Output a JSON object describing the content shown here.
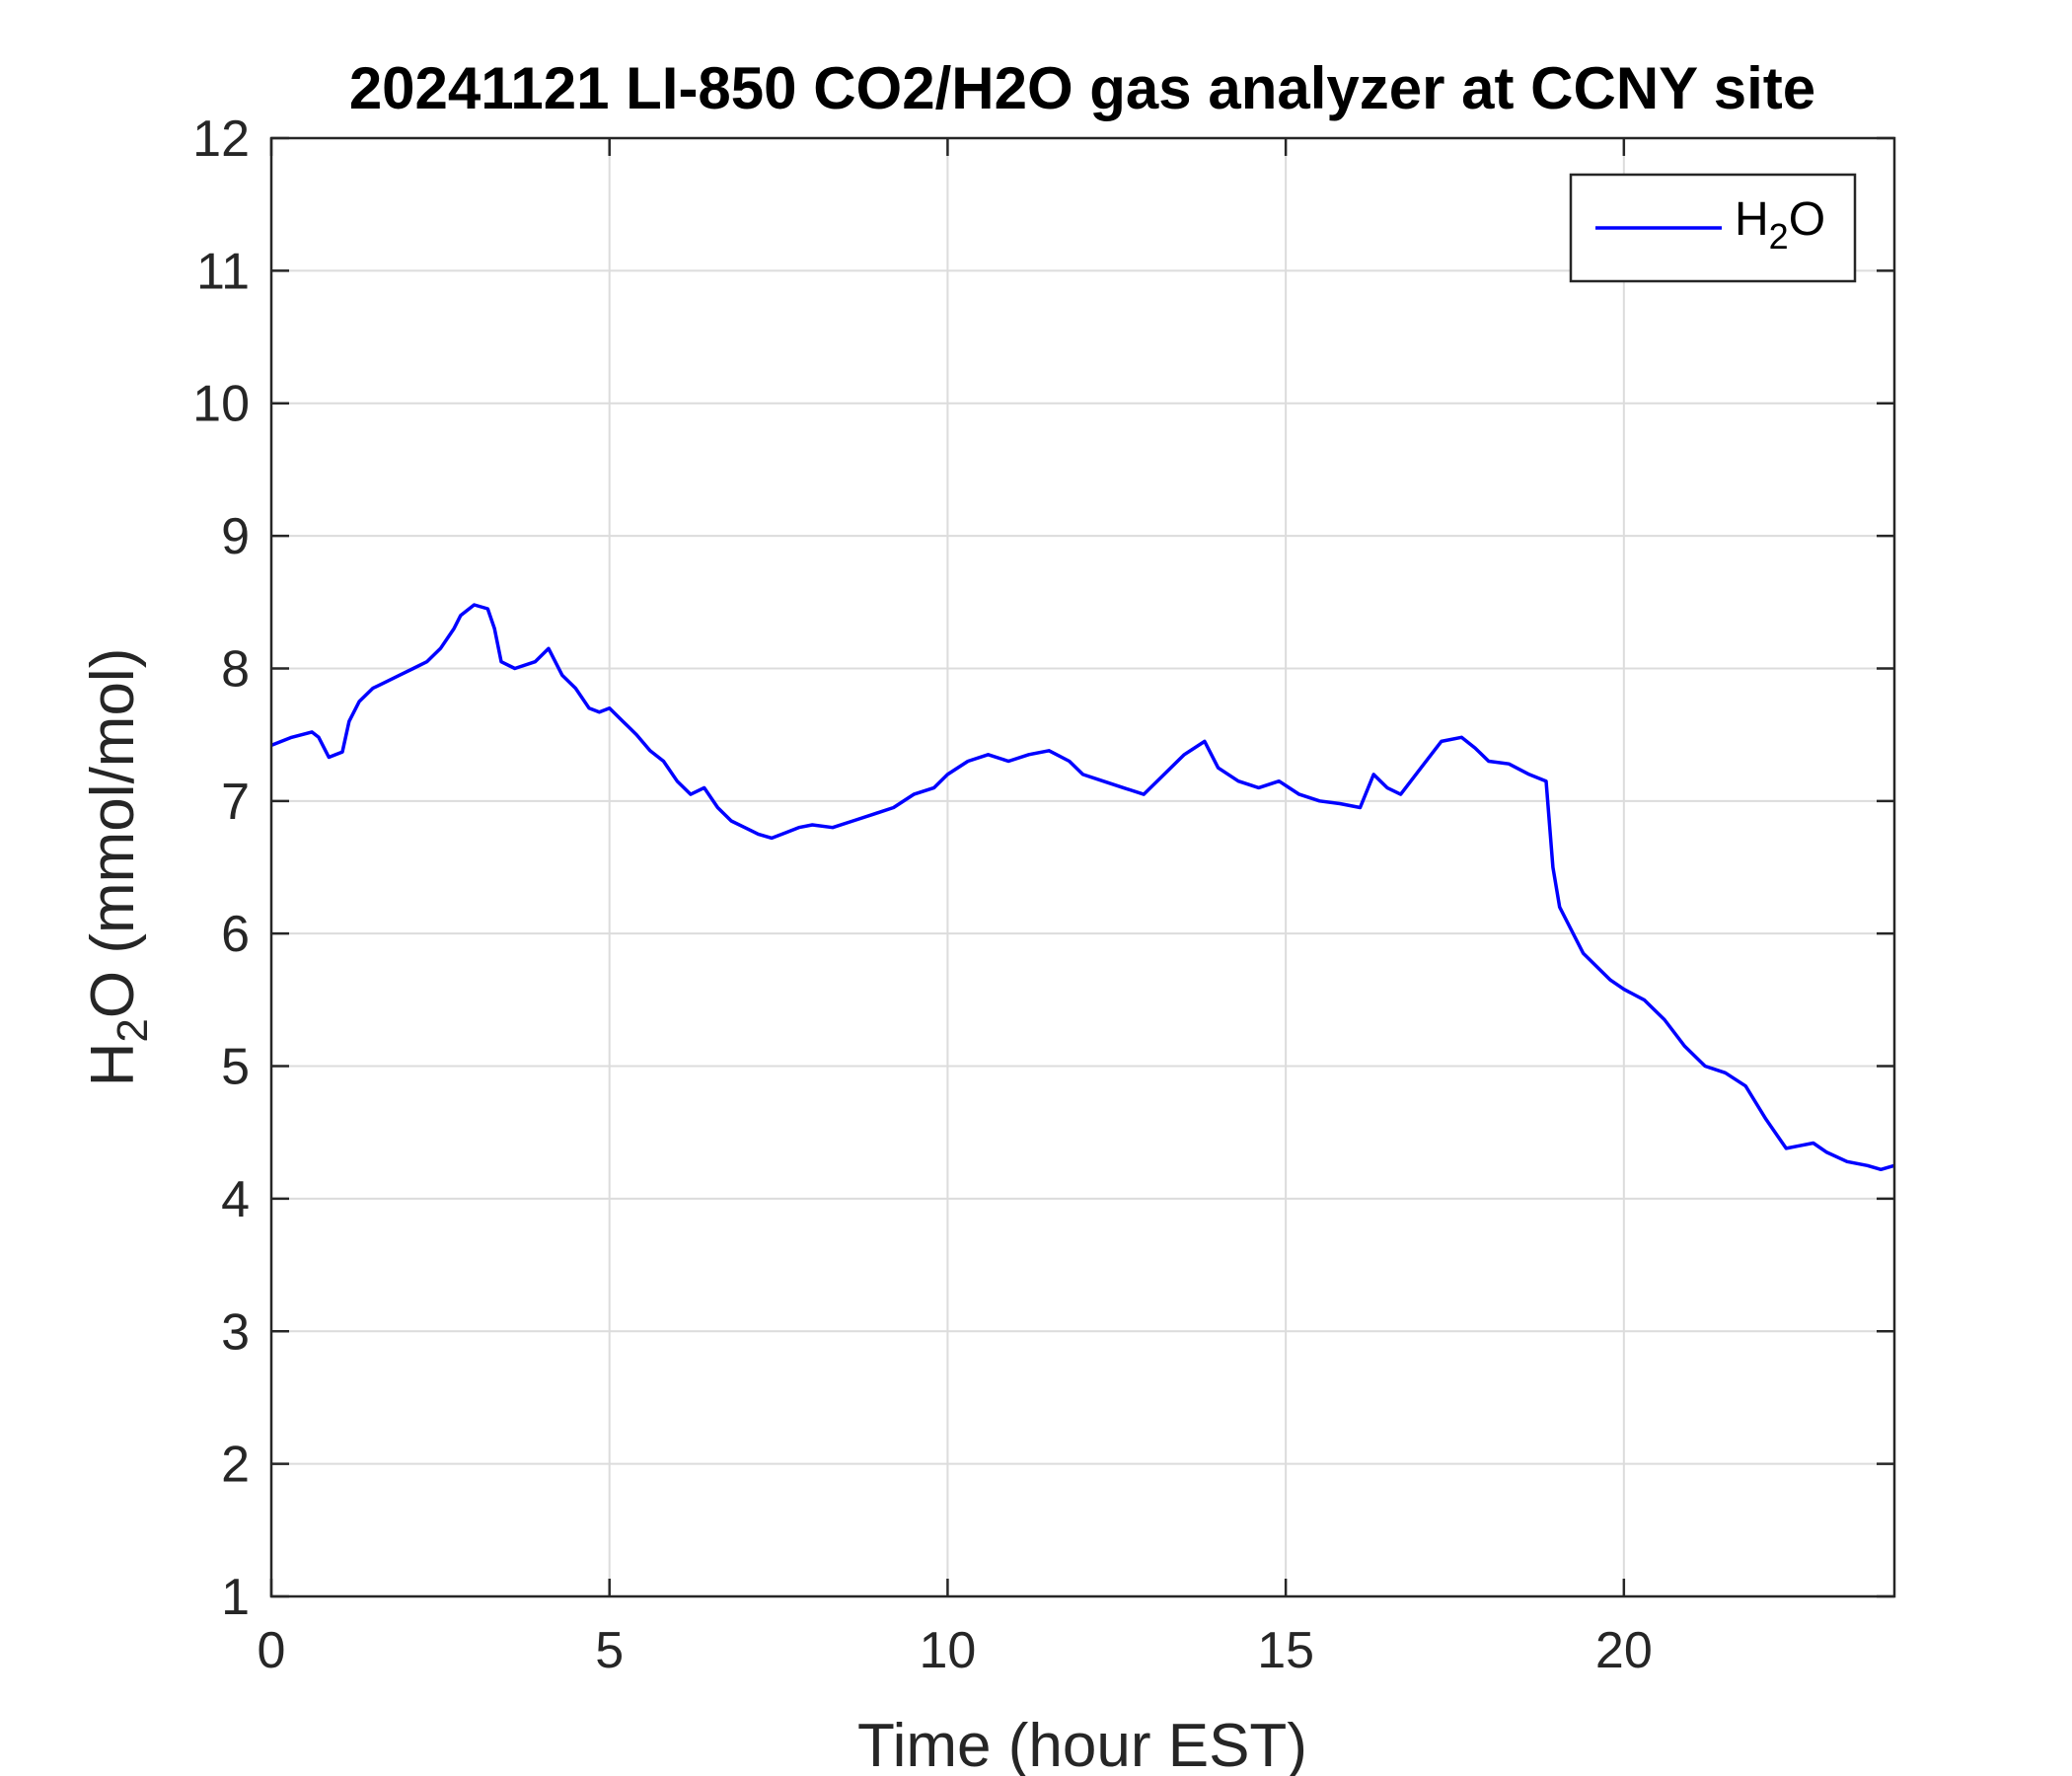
{
  "chart_data": {
    "type": "line",
    "title": "20241121 LI-850 CO2/H2O gas analyzer at CCNY site",
    "xlabel": "Time (hour EST)",
    "ylabel": {
      "main": "H",
      "sub": "2",
      "rest": "O (mmol/mol)"
    },
    "xlim": [
      0,
      24
    ],
    "ylim": [
      1,
      12
    ],
    "xticks": [
      0,
      5,
      10,
      15,
      20
    ],
    "yticks": [
      1,
      2,
      3,
      4,
      5,
      6,
      7,
      8,
      9,
      10,
      11,
      12
    ],
    "grid": true,
    "legend_position": "top-right",
    "series": [
      {
        "name": "H2O",
        "legend": {
          "main": "H",
          "sub": "2",
          "rest": "O"
        },
        "color": "#0000ff",
        "x": [
          0,
          0.3,
          0.6,
          0.7,
          0.85,
          1.05,
          1.15,
          1.3,
          1.5,
          1.7,
          1.9,
          2.1,
          2.3,
          2.5,
          2.7,
          2.8,
          3.0,
          3.2,
          3.3,
          3.4,
          3.6,
          3.9,
          4.1,
          4.3,
          4.5,
          4.7,
          4.85,
          5.0,
          5.2,
          5.4,
          5.6,
          5.8,
          6.0,
          6.2,
          6.4,
          6.6,
          6.8,
          7.0,
          7.2,
          7.4,
          7.6,
          7.8,
          8.0,
          8.3,
          8.6,
          8.9,
          9.2,
          9.5,
          9.8,
          10.0,
          10.3,
          10.6,
          10.9,
          11.2,
          11.5,
          11.8,
          12.0,
          12.3,
          12.6,
          12.9,
          13.2,
          13.5,
          13.8,
          14.0,
          14.3,
          14.6,
          14.9,
          15.2,
          15.5,
          15.8,
          16.1,
          16.3,
          16.5,
          16.7,
          17.0,
          17.3,
          17.6,
          17.8,
          18.0,
          18.3,
          18.6,
          18.85,
          18.95,
          19.05,
          19.2,
          19.4,
          19.6,
          19.8,
          20.0,
          20.3,
          20.6,
          20.9,
          21.2,
          21.5,
          21.8,
          22.1,
          22.4,
          22.6,
          22.8,
          23.0,
          23.3,
          23.6,
          23.8,
          24.0
        ],
        "y": [
          7.42,
          7.48,
          7.52,
          7.48,
          7.33,
          7.37,
          7.6,
          7.75,
          7.85,
          7.9,
          7.95,
          8.0,
          8.05,
          8.15,
          8.3,
          8.4,
          8.48,
          8.45,
          8.3,
          8.05,
          8.0,
          8.05,
          8.15,
          7.95,
          7.85,
          7.7,
          7.67,
          7.7,
          7.6,
          7.5,
          7.38,
          7.3,
          7.15,
          7.05,
          7.1,
          6.95,
          6.85,
          6.8,
          6.75,
          6.72,
          6.76,
          6.8,
          6.82,
          6.8,
          6.85,
          6.9,
          6.95,
          7.05,
          7.1,
          7.2,
          7.3,
          7.35,
          7.3,
          7.35,
          7.38,
          7.3,
          7.2,
          7.15,
          7.1,
          7.05,
          7.2,
          7.35,
          7.45,
          7.25,
          7.15,
          7.1,
          7.15,
          7.05,
          7.0,
          6.98,
          6.95,
          7.2,
          7.1,
          7.05,
          7.25,
          7.45,
          7.48,
          7.4,
          7.3,
          7.28,
          7.2,
          7.15,
          6.5,
          6.2,
          6.05,
          5.85,
          5.75,
          5.65,
          5.58,
          5.5,
          5.35,
          5.15,
          5.0,
          4.95,
          4.85,
          4.6,
          4.38,
          4.4,
          4.42,
          4.35,
          4.28,
          4.25,
          4.22,
          4.25
        ]
      }
    ]
  }
}
